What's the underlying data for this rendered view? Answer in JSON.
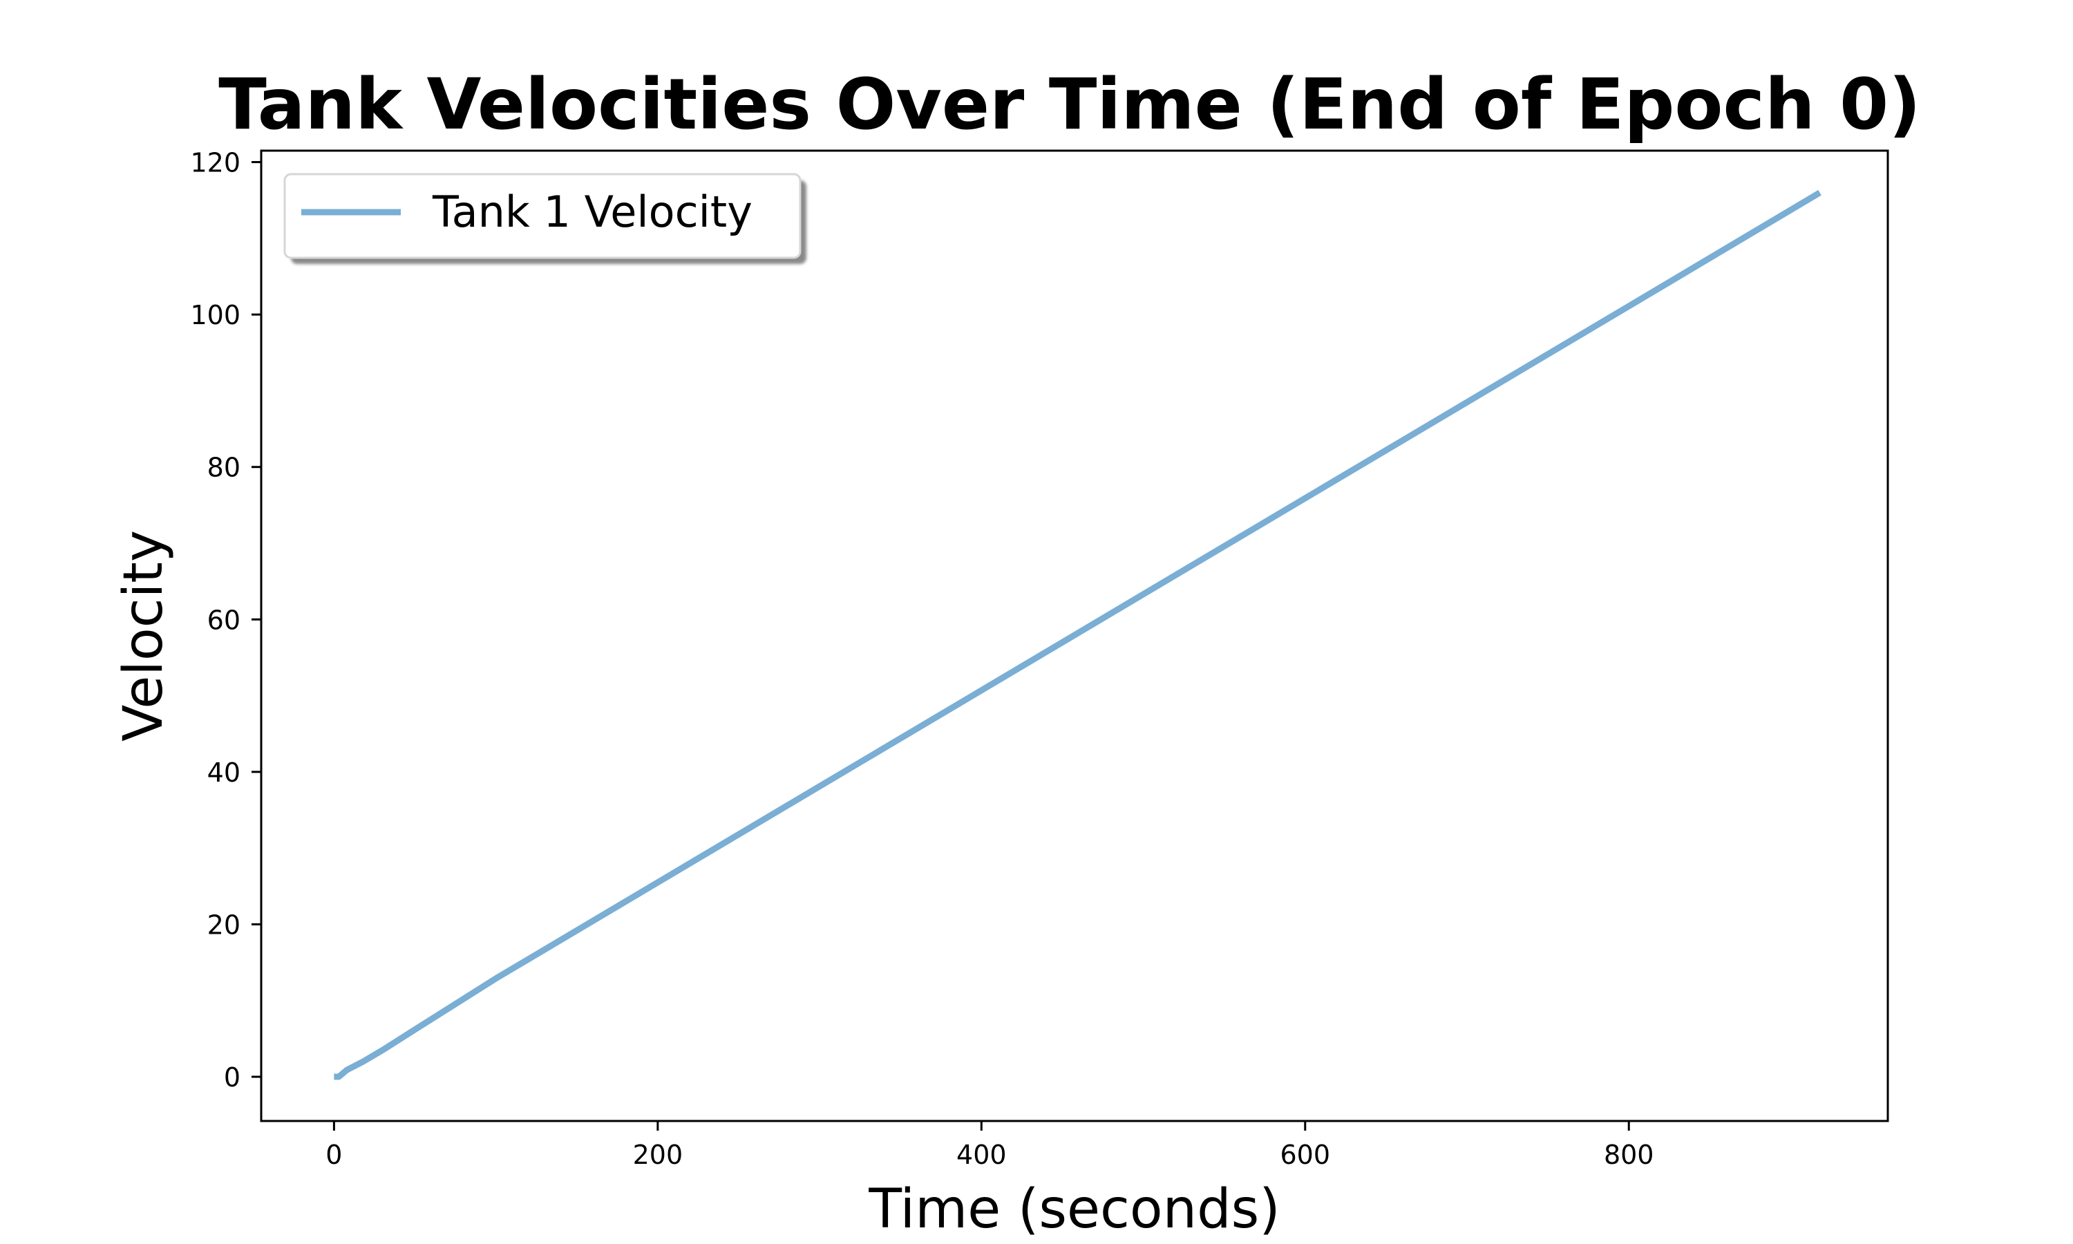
{
  "chart_data": {
    "type": "line",
    "title": "Tank Velocities Over Time (End of Epoch 0)",
    "xlabel": "Time (seconds)",
    "ylabel": "Velocity",
    "xlim": [
      -45,
      960
    ],
    "ylim": [
      -5.8,
      121.5
    ],
    "xticks": [
      0,
      200,
      400,
      600,
      800
    ],
    "yticks": [
      0,
      20,
      40,
      60,
      80,
      100,
      120
    ],
    "grid": false,
    "legend_position": "top-left",
    "series": [
      {
        "name": "Tank 1 Velocity",
        "color": "#7aaed4",
        "x": [
          0,
          3,
          8,
          18,
          30,
          50,
          100,
          200,
          300,
          400,
          500,
          600,
          700,
          800,
          918
        ],
        "y": [
          0,
          0,
          0.9,
          2.0,
          3.5,
          6.2,
          12.9,
          25.5,
          38.1,
          50.7,
          63.3,
          75.9,
          88.5,
          101.1,
          116.0
        ]
      }
    ]
  }
}
